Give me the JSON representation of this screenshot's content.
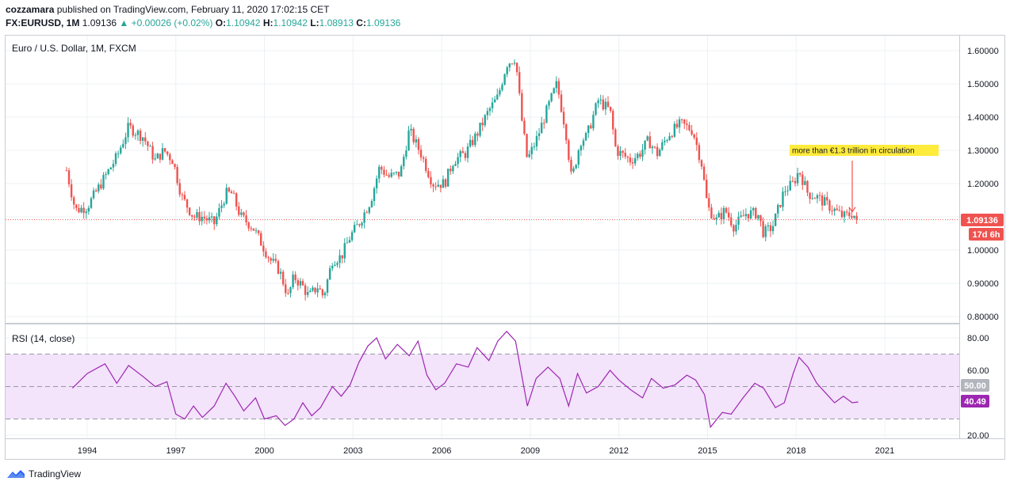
{
  "header": {
    "publisher": "cozzamara",
    "published_text": "published on TradingView.com, February 11, 2020 17:02:15 CET",
    "symbol": "FX:EURUSD, 1M",
    "last": "1.09136",
    "change": "+0.00026 (+0.02%)",
    "open_label": "O:",
    "open": "1.10942",
    "high_label": "H:",
    "high": "1.10942",
    "low_label": "L:",
    "low": "1.08913",
    "close_label": "C:",
    "close": "1.09136"
  },
  "footer": {
    "brand": "TradingView"
  },
  "colors": {
    "up": "#26a69a",
    "down": "#ef5350",
    "rsi": "#9c27b0",
    "rsi_band": "#f3e3fb",
    "grid": "#eef0f3",
    "price_line": "#ef5350",
    "annotation_bg": "#ffeb3b"
  },
  "chart_data": [
    {
      "type": "candlestick",
      "title": "Euro / U.S. Dollar, 1M, FXCM",
      "x_tick_labels": [
        "1994",
        "1997",
        "2000",
        "2003",
        "2006",
        "2009",
        "2012",
        "2015",
        "2018",
        "2021"
      ],
      "x_tick_years": [
        1994,
        1997,
        2000,
        2003,
        2006,
        2009,
        2012,
        2015,
        2018,
        2021
      ],
      "x_range": [
        1991.2,
        2023.5
      ],
      "y_tick_labels": [
        "1.60000",
        "1.50000",
        "1.40000",
        "1.30000",
        "1.20000",
        "1.10000",
        "1.00000",
        "0.90000",
        "0.80000"
      ],
      "y_ticks": [
        1.6,
        1.5,
        1.4,
        1.3,
        1.2,
        1.1,
        1.0,
        0.9,
        0.8
      ],
      "ylim": [
        0.78,
        1.65
      ],
      "last_price_label": "1.09136",
      "last_price": 1.09136,
      "countdown_label": "17d 6h",
      "annotation": {
        "text": "more than €1.3 trillion in circulation",
        "arrow_year": 2019.9,
        "arrow_value": 1.115
      },
      "series_anchors": {
        "x": [
          1993.3,
          1993.6,
          1994.0,
          1994.6,
          1995.0,
          1995.4,
          1995.9,
          1996.3,
          1996.6,
          1996.9,
          1997.2,
          1997.6,
          1997.9,
          1998.3,
          1998.7,
          1998.9,
          1999.2,
          1999.6,
          1999.9,
          2000.2,
          2000.5,
          2000.8,
          2001.0,
          2001.3,
          2001.5,
          2001.8,
          2002.0,
          2002.3,
          2002.6,
          2002.9,
          2003.2,
          2003.6,
          2003.9,
          2004.2,
          2004.6,
          2004.9,
          2005.3,
          2005.7,
          2006.1,
          2006.4,
          2006.8,
          2007.2,
          2007.6,
          2007.9,
          2008.2,
          2008.5,
          2008.7,
          2008.9,
          2009.2,
          2009.6,
          2009.9,
          2010.2,
          2010.4,
          2010.7,
          2010.9,
          2011.3,
          2011.7,
          2011.9,
          2012.4,
          2012.7,
          2013.0,
          2013.3,
          2013.7,
          2014.1,
          2014.5,
          2014.8,
          2015.0,
          2015.3,
          2015.6,
          2015.9,
          2016.3,
          2016.7,
          2016.9,
          2017.2,
          2017.6,
          2017.9,
          2018.1,
          2018.4,
          2018.7,
          2019.0,
          2019.3,
          2019.6,
          2019.9,
          2020.1
        ],
        "close": [
          1.24,
          1.12,
          1.13,
          1.22,
          1.28,
          1.37,
          1.34,
          1.27,
          1.3,
          1.27,
          1.16,
          1.1,
          1.1,
          1.08,
          1.17,
          1.17,
          1.1,
          1.07,
          1.02,
          0.97,
          0.94,
          0.86,
          0.92,
          0.89,
          0.86,
          0.89,
          0.86,
          0.97,
          0.98,
          1.04,
          1.08,
          1.15,
          1.25,
          1.22,
          1.23,
          1.36,
          1.29,
          1.2,
          1.2,
          1.27,
          1.29,
          1.35,
          1.42,
          1.46,
          1.56,
          1.58,
          1.4,
          1.27,
          1.33,
          1.43,
          1.5,
          1.36,
          1.21,
          1.33,
          1.34,
          1.45,
          1.42,
          1.3,
          1.27,
          1.29,
          1.33,
          1.29,
          1.35,
          1.38,
          1.36,
          1.26,
          1.13,
          1.09,
          1.12,
          1.07,
          1.11,
          1.11,
          1.05,
          1.07,
          1.18,
          1.2,
          1.24,
          1.17,
          1.16,
          1.14,
          1.12,
          1.1,
          1.11,
          1.09136
        ]
      }
    },
    {
      "type": "line",
      "title": "RSI (14, close)",
      "y_tick_labels": [
        "80.00",
        "60.00",
        "20.00"
      ],
      "y_ticks": [
        80,
        60,
        20
      ],
      "ylim": [
        19,
        85
      ],
      "bands": [
        70,
        50,
        30
      ],
      "band_50_label": "50.00",
      "last_value_label": "40.49",
      "last_value": 40.49,
      "series": [
        {
          "x": [
            1993.5,
            1994.0,
            1994.6,
            1995.0,
            1995.4,
            1995.9,
            1996.3,
            1996.7,
            1997.0,
            1997.3,
            1997.6,
            1997.9,
            1998.3,
            1998.7,
            1999.0,
            1999.3,
            1999.7,
            2000.0,
            2000.4,
            2000.7,
            2001.0,
            2001.3,
            2001.6,
            2001.9,
            2002.3,
            2002.6,
            2002.9,
            2003.2,
            2003.5,
            2003.8,
            2004.1,
            2004.5,
            2004.9,
            2005.2,
            2005.5,
            2005.8,
            2006.1,
            2006.5,
            2006.9,
            2007.2,
            2007.6,
            2007.9,
            2008.2,
            2008.5,
            2008.7,
            2008.9,
            2009.2,
            2009.6,
            2010.0,
            2010.3,
            2010.6,
            2010.9,
            2011.3,
            2011.7,
            2012.0,
            2012.4,
            2012.8,
            2013.1,
            2013.5,
            2013.9,
            2014.3,
            2014.6,
            2014.9,
            2015.1,
            2015.5,
            2015.8,
            2016.2,
            2016.6,
            2016.9,
            2017.3,
            2017.6,
            2017.9,
            2018.1,
            2018.4,
            2018.7,
            2019.0,
            2019.3,
            2019.6,
            2019.9,
            2020.1
          ],
          "values": [
            49,
            58,
            64,
            52,
            63,
            56,
            50,
            53,
            33,
            30,
            38,
            31,
            38,
            52,
            44,
            35,
            43,
            30,
            32,
            26,
            30,
            40,
            32,
            37,
            50,
            44,
            51,
            65,
            75,
            80,
            67,
            76,
            69,
            78,
            57,
            48,
            52,
            64,
            62,
            74,
            66,
            78,
            84,
            78,
            58,
            38,
            55,
            62,
            55,
            38,
            58,
            46,
            50,
            60,
            54,
            48,
            43,
            55,
            49,
            51,
            57,
            54,
            45,
            25,
            34,
            33,
            43,
            52,
            49,
            37,
            40,
            58,
            68,
            62,
            52,
            46,
            40,
            44,
            40,
            40.49
          ]
        }
      ]
    }
  ]
}
